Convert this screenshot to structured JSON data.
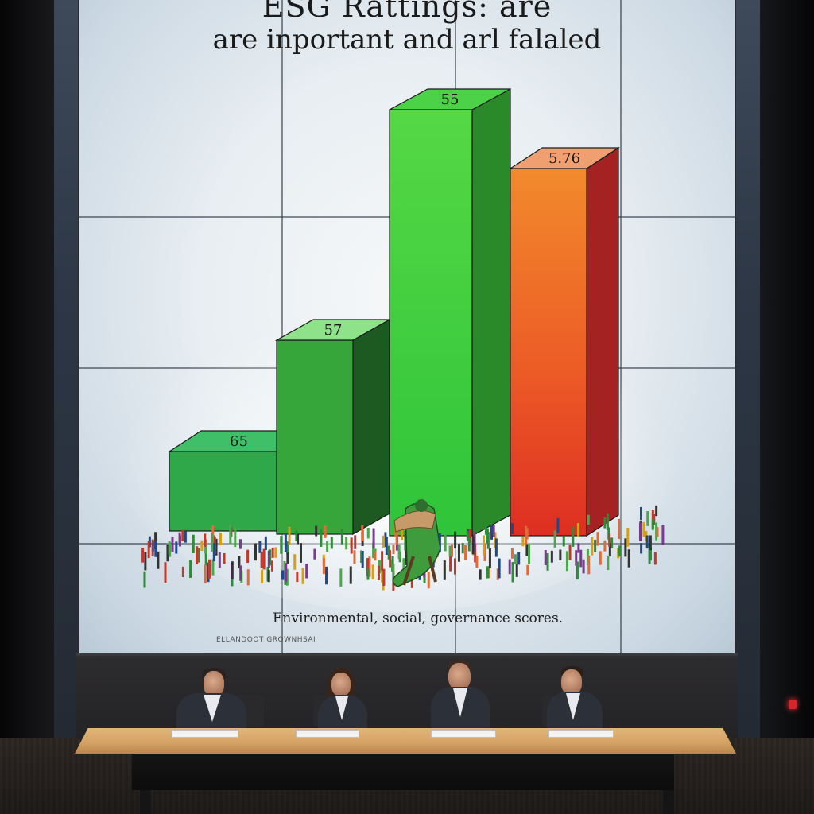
{
  "screen": {
    "title_line1": "ESG Rattings: are",
    "title_line2": "are inportant and arl falaled",
    "caption": "Environmental, social, governance scores.",
    "signature": "ELLANDOOT GROWNHSAI"
  },
  "chart_data": {
    "type": "bar",
    "categories": [
      "",
      "",
      "",
      ""
    ],
    "series": [
      {
        "values": [
          65,
          57,
          55,
          5.76
        ],
        "labels": [
          "65",
          "57",
          "55",
          "5.76"
        ]
      }
    ],
    "title": "ESG Rattings: are / are inportant and arl falaled",
    "xlabel": "",
    "ylabel": "",
    "grid": false,
    "colors": [
      "#2fa84a",
      "#36a63a",
      "#3fcf3a",
      "#e9542a"
    ]
  },
  "colors": {
    "screen_bg": "#e8eef2",
    "bar_green_dark": "#2fa84a",
    "bar_green_mid": "#36a63a",
    "bar_green_bright": "#3fcf3a",
    "bar_orange": "#e9542a",
    "table_wood": "#d4a163"
  }
}
